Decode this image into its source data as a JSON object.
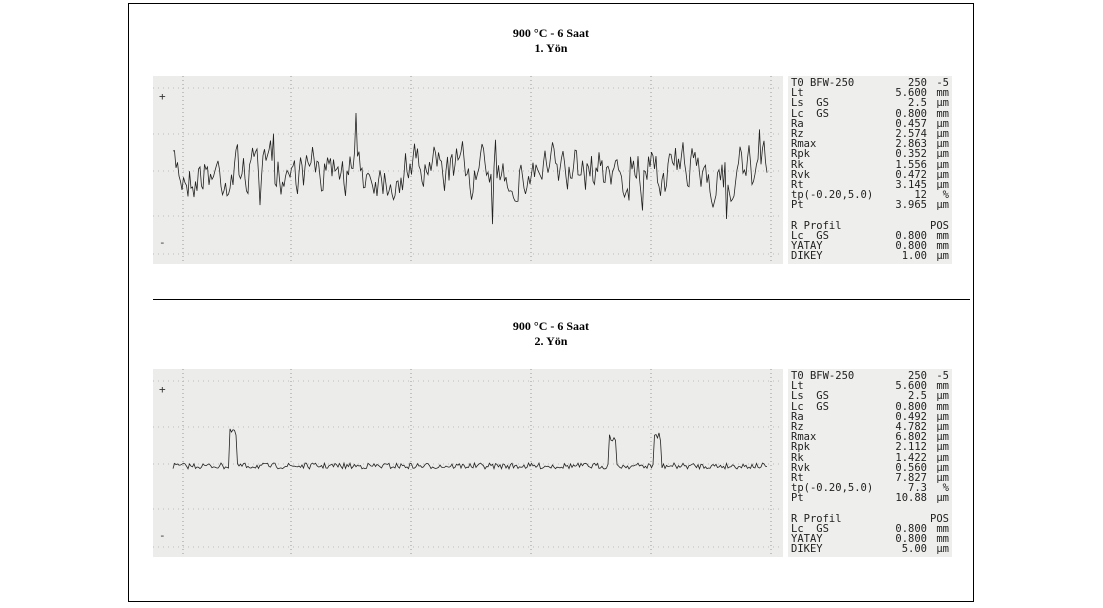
{
  "panels": [
    {
      "title": "900 °C - 6 Saat",
      "subtitle": "1. Yön",
      "plot": {
        "plus": "+",
        "minus": "-"
      },
      "readout": {
        "rows": [
          [
            "T0 BFW-250",
            "250",
            "-5"
          ],
          [
            "Lt",
            "5.600",
            "mm"
          ],
          [
            "Ls  GS",
            "2.5",
            "µm"
          ],
          [
            "Lc  GS",
            "0.800",
            "mm"
          ],
          [
            "Ra",
            "0.457",
            "µm"
          ],
          [
            "Rz",
            "2.574",
            "µm"
          ],
          [
            "Rmax",
            "2.863",
            "µm"
          ],
          [
            "Rpk",
            "0.352",
            "µm"
          ],
          [
            "Rk",
            "1.556",
            "µm"
          ],
          [
            "Rvk",
            "0.472",
            "µm"
          ],
          [
            "Rt",
            "3.145",
            "µm"
          ],
          [
            "tp(-0.20,5.0)",
            "12",
            "%"
          ],
          [
            "Pt",
            "3.965",
            "µm"
          ]
        ],
        "settings": [
          [
            "R Profil",
            "POS"
          ],
          [
            "Lc  GS",
            "0.800",
            "mm"
          ],
          [
            "YATAY",
            "0.800",
            "mm"
          ],
          [
            "DIKEY",
            "1.00",
            "µm"
          ]
        ]
      }
    },
    {
      "title": "900 °C - 6 Saat",
      "subtitle": "2. Yön",
      "plot": {
        "plus": "+",
        "minus": "-"
      },
      "readout": {
        "rows": [
          [
            "T0 BFW-250",
            "250",
            "-5"
          ],
          [
            "Lt",
            "5.600",
            "mm"
          ],
          [
            "Ls  GS",
            "2.5",
            "µm"
          ],
          [
            "Lc  GS",
            "0.800",
            "mm"
          ],
          [
            "Ra",
            "0.492",
            "µm"
          ],
          [
            "Rz",
            "4.782",
            "µm"
          ],
          [
            "Rmax",
            "6.802",
            "µm"
          ],
          [
            "Rpk",
            "2.112",
            "µm"
          ],
          [
            "Rk",
            "1.422",
            "µm"
          ],
          [
            "Rvk",
            "0.560",
            "µm"
          ],
          [
            "Rt",
            "7.827",
            "µm"
          ],
          [
            "tp(-0.20,5.0)",
            "7.3",
            "%"
          ],
          [
            "Pt",
            "10.88",
            "µm"
          ]
        ],
        "settings": [
          [
            "R Profil",
            "POS"
          ],
          [
            "Lc  GS",
            "0.800",
            "mm"
          ],
          [
            "YATAY",
            "0.800",
            "mm"
          ],
          [
            "DIKEY",
            "5.00",
            "µm"
          ]
        ]
      }
    }
  ]
}
